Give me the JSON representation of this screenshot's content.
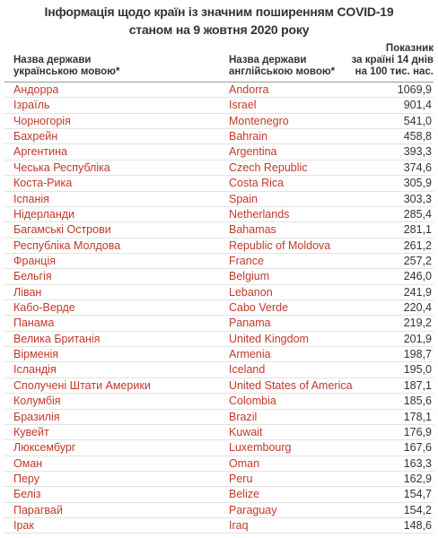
{
  "header": {
    "title": [
      "Інформація щодо країн із значним поширенням COVID-19",
      "станом на 9 жовтня 2020 року"
    ]
  },
  "table": {
    "columns": [
      [
        "Назва держави",
        "українською мовою*"
      ],
      [
        "Назва держави",
        "англійською мовою*"
      ],
      [
        "Показник",
        "за країні 14 днів",
        "на 100 тис. нас."
      ]
    ],
    "rows": [
      [
        "Андорра",
        "Andorra",
        "1069,9"
      ],
      [
        "Ізраїль",
        "Israel",
        "901,4"
      ],
      [
        "Чорногорія",
        "Montenegro",
        "541,0"
      ],
      [
        "Бахрейн",
        "Bahrain",
        "458,8"
      ],
      [
        "Аргентина",
        "Argentina",
        "393,3"
      ],
      [
        "Чеська Республіка",
        "Czech Republic",
        "374,6"
      ],
      [
        "Коста-Рика",
        "Costa Rica",
        "305,9"
      ],
      [
        "Іспанія",
        "Spain",
        "303,3"
      ],
      [
        "Нідерланди",
        "Netherlands",
        "285,4"
      ],
      [
        "Багамські Острови",
        "Bahamas",
        "281,1"
      ],
      [
        "Республіка Молдова",
        "Republic of Moldova",
        "261,2"
      ],
      [
        "Франція",
        "France",
        "257,2"
      ],
      [
        "Бельгія",
        "Belgium",
        "246,0"
      ],
      [
        "Ліван",
        "Lebanon",
        "241,9"
      ],
      [
        "Кабо-Верде",
        "Cabo Verde",
        "220,4"
      ],
      [
        "Панама",
        "Panama",
        "219,2"
      ],
      [
        "Велика Британія",
        "United Kingdom",
        "201,9"
      ],
      [
        "Вірменія",
        "Armenia",
        "198,7"
      ],
      [
        "Ісландія",
        "Iceland",
        "195,0"
      ],
      [
        "Сполучені Штати Америки",
        "United States of America",
        "187,1"
      ],
      [
        "Колумбія",
        "Colombia",
        "185,6"
      ],
      [
        "Бразилія",
        "Brazil",
        "178,1"
      ],
      [
        "Кувейт",
        "Kuwait",
        "176,9"
      ],
      [
        "Люксембург",
        "Luxembourg",
        "167,6"
      ],
      [
        "Оман",
        "Oman",
        "163,3"
      ],
      [
        "Перу",
        "Peru",
        "162,9"
      ],
      [
        "Беліз",
        "Belize",
        "154,7"
      ],
      [
        "Парагвай",
        "Paraguay",
        "154,2"
      ],
      [
        "Ірак",
        "Iraq",
        "148,6"
      ]
    ]
  }
}
